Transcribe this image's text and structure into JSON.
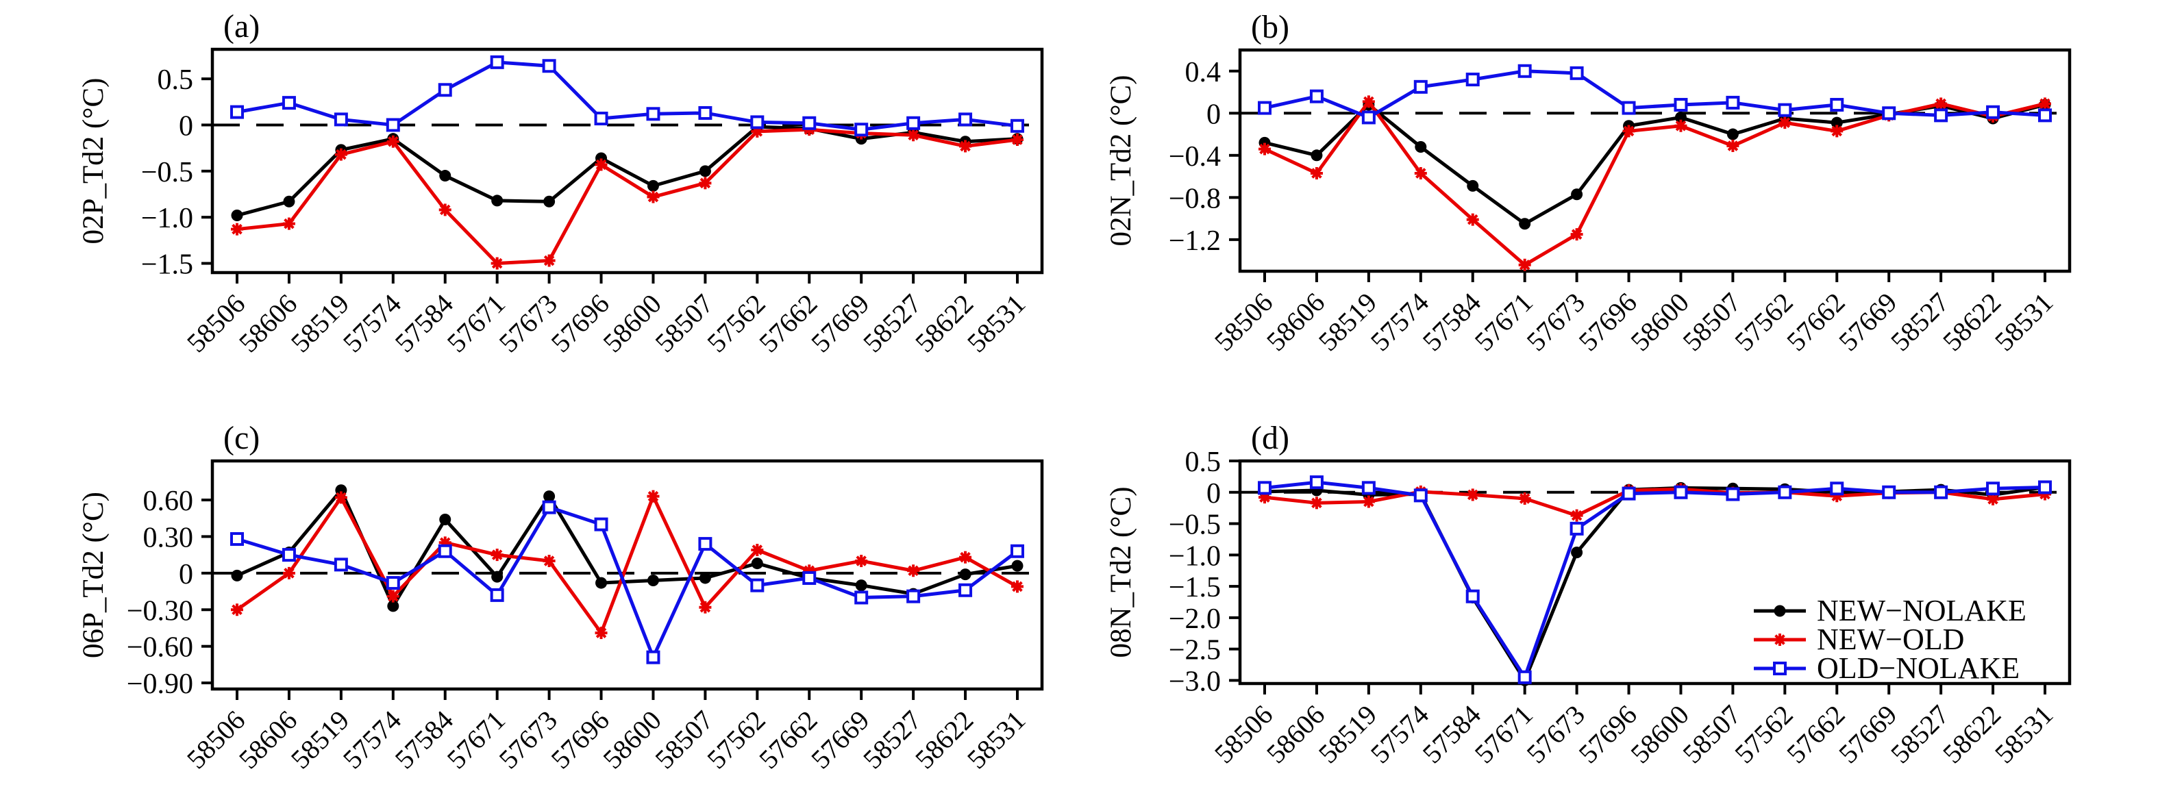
{
  "chart_data": {
    "type": "line",
    "description": "Four-panel station-wise Td2 difference line chart",
    "categories": [
      "58506",
      "58606",
      "58519",
      "57574",
      "57584",
      "57671",
      "57673",
      "57696",
      "58600",
      "58507",
      "57562",
      "57662",
      "57669",
      "58527",
      "58622",
      "58531"
    ],
    "series_styles": [
      {
        "name": "NEW−NOLAKE",
        "color": "#000000",
        "marker": "circle"
      },
      {
        "name": "NEW−OLD",
        "color": "#e80000",
        "marker": "star"
      },
      {
        "name": "OLD−NOLAKE",
        "color": "#0f0fe8",
        "marker": "square"
      }
    ],
    "legend": {
      "entries": [
        "NEW−NOLAKE",
        "NEW−OLD",
        "OLD−NOLAKE"
      ],
      "position": "lower right of panel (d)"
    },
    "panels": [
      {
        "id": "a",
        "label": "(a)",
        "ylabel": "02P_Td2 (°C)",
        "ylim": [
          -1.6,
          0.82
        ],
        "grid": false,
        "yticks": [
          {
            "v": 0.5,
            "t": "0.5"
          },
          {
            "v": 0,
            "t": "0"
          },
          {
            "v": -0.5,
            "t": "−0.5"
          },
          {
            "v": -1.0,
            "t": "−1.0"
          },
          {
            "v": -1.5,
            "t": "−1.5"
          }
        ],
        "series": [
          {
            "name": "NEW−NOLAKE",
            "values": [
              -0.98,
              -0.83,
              -0.27,
              -0.15,
              -0.55,
              -0.82,
              -0.83,
              -0.36,
              -0.66,
              -0.5,
              -0.02,
              -0.04,
              -0.15,
              -0.08,
              -0.18,
              -0.15
            ]
          },
          {
            "name": "NEW−OLD",
            "values": [
              -1.13,
              -1.07,
              -0.32,
              -0.18,
              -0.92,
              -1.5,
              -1.47,
              -0.43,
              -0.78,
              -0.63,
              -0.07,
              -0.05,
              -0.09,
              -0.11,
              -0.23,
              -0.16
            ]
          },
          {
            "name": "OLD−NOLAKE",
            "values": [
              0.14,
              0.24,
              0.06,
              0.0,
              0.38,
              0.68,
              0.64,
              0.07,
              0.12,
              0.13,
              0.03,
              0.02,
              -0.05,
              0.02,
              0.06,
              -0.01
            ]
          }
        ]
      },
      {
        "id": "b",
        "label": "(b)",
        "ylabel": "02N_Td2 (°C)",
        "ylim": [
          -1.5,
          0.6
        ],
        "grid": false,
        "yticks": [
          {
            "v": 0.4,
            "t": "0.4"
          },
          {
            "v": 0,
            "t": "0"
          },
          {
            "v": -0.4,
            "t": "−0.4"
          },
          {
            "v": -0.8,
            "t": "−0.8"
          },
          {
            "v": -1.2,
            "t": "−1.2"
          }
        ],
        "series": [
          {
            "name": "NEW−NOLAKE",
            "values": [
              -0.28,
              -0.4,
              0.08,
              -0.32,
              -0.69,
              -1.05,
              -0.77,
              -0.12,
              -0.04,
              -0.2,
              -0.05,
              -0.09,
              -0.01,
              0.07,
              -0.05,
              0.08
            ]
          },
          {
            "name": "NEW−OLD",
            "values": [
              -0.34,
              -0.57,
              0.11,
              -0.57,
              -1.01,
              -1.44,
              -1.15,
              -0.17,
              -0.12,
              -0.31,
              -0.09,
              -0.17,
              -0.02,
              0.09,
              -0.03,
              0.09
            ]
          },
          {
            "name": "OLD−NOLAKE",
            "values": [
              0.05,
              0.16,
              -0.04,
              0.25,
              0.32,
              0.4,
              0.38,
              0.05,
              0.08,
              0.1,
              0.03,
              0.08,
              0.0,
              -0.02,
              0.01,
              -0.02
            ]
          }
        ]
      },
      {
        "id": "c",
        "label": "(c)",
        "ylabel": "06P_Td2 (°C)",
        "ylim": [
          -0.95,
          0.92
        ],
        "grid": false,
        "yticks": [
          {
            "v": 0.6,
            "t": "0.60"
          },
          {
            "v": 0.3,
            "t": "0.30"
          },
          {
            "v": 0,
            "t": "0"
          },
          {
            "v": -0.3,
            "t": "−0.30"
          },
          {
            "v": -0.6,
            "t": "−0.60"
          },
          {
            "v": -0.9,
            "t": "−0.90"
          }
        ],
        "series": [
          {
            "name": "NEW−NOLAKE",
            "values": [
              -0.02,
              0.17,
              0.68,
              -0.27,
              0.44,
              -0.03,
              0.63,
              -0.08,
              -0.06,
              -0.04,
              0.08,
              -0.04,
              -0.1,
              -0.17,
              -0.01,
              0.06
            ]
          },
          {
            "name": "NEW−OLD",
            "values": [
              -0.3,
              0.0,
              0.62,
              -0.19,
              0.25,
              0.15,
              0.1,
              -0.49,
              0.63,
              -0.28,
              0.19,
              0.02,
              0.1,
              0.02,
              0.13,
              -0.11
            ]
          },
          {
            "name": "OLD−NOLAKE",
            "values": [
              0.28,
              0.15,
              0.07,
              -0.08,
              0.18,
              -0.18,
              0.54,
              0.4,
              -0.69,
              0.24,
              -0.1,
              -0.04,
              -0.2,
              -0.19,
              -0.14,
              0.18
            ]
          }
        ]
      },
      {
        "id": "d",
        "label": "(d)",
        "ylabel": "08N_Td2 (°C)",
        "ylim": [
          -3.05,
          0.5
        ],
        "grid": false,
        "yticks": [
          {
            "v": 0.5,
            "t": "0.5"
          },
          {
            "v": 0,
            "t": "0"
          },
          {
            "v": -0.5,
            "t": "−0.5"
          },
          {
            "v": -1.0,
            "t": "−1.0"
          },
          {
            "v": -1.5,
            "t": "−1.5"
          },
          {
            "v": -2.0,
            "t": "−2.0"
          },
          {
            "v": -2.5,
            "t": "−2.5"
          },
          {
            "v": -3.0,
            "t": "−3.0"
          }
        ],
        "series": [
          {
            "name": "NEW−NOLAKE",
            "values": [
              0.01,
              0.03,
              -0.04,
              -0.03,
              -1.68,
              -3.0,
              -0.96,
              0.04,
              0.07,
              0.06,
              0.05,
              0.0,
              0.01,
              0.04,
              -0.04,
              0.08
            ]
          },
          {
            "name": "NEW−OLD",
            "values": [
              -0.08,
              -0.17,
              -0.15,
              0.01,
              -0.04,
              -0.1,
              -0.37,
              0.03,
              0.05,
              -0.01,
              0.0,
              -0.06,
              -0.01,
              0.0,
              -0.11,
              -0.03
            ]
          },
          {
            "name": "OLD−NOLAKE",
            "values": [
              0.07,
              0.16,
              0.07,
              -0.05,
              -1.66,
              -2.95,
              -0.58,
              -0.02,
              0.0,
              -0.03,
              0.0,
              0.06,
              0.0,
              0.0,
              0.06,
              0.08
            ]
          }
        ]
      }
    ]
  }
}
